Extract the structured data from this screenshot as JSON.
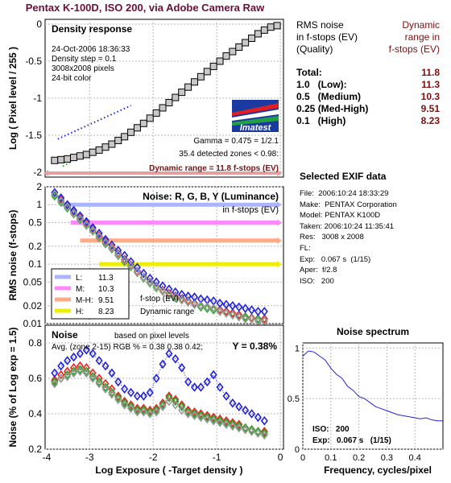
{
  "title": "Pentax K-100D, ISO 200, via Adobe Camera Raw",
  "ev_table": {
    "header_left": [
      "RMS noise",
      "in f-stops (EV)",
      "(Quality)"
    ],
    "header_right": [
      "Dynamic",
      "range in",
      "f-stops (EV)"
    ],
    "rows": [
      {
        "label": "Total:",
        "value": "11.8"
      },
      {
        "label": "1.0   (Low):",
        "value": "11.3"
      },
      {
        "label": "0.5   (Medium)",
        "value": "10.3"
      },
      {
        "label": "0.25 (Med-High)",
        "value": "9.51"
      },
      {
        "label": "0.1   (High)",
        "value": "8.23"
      }
    ]
  },
  "exif": {
    "title": "Selected EXIF data",
    "rows": [
      "File:  2006:10:24 18:33:29",
      "Make:  PENTAX Corporation",
      "Model: PENTAX K100D",
      "Taken: 2006:10:24 11:35:41",
      "Res:   3008 x 2008",
      "FL:",
      "Exp:   0.067 s  (1/15)",
      "Aper:  f/2.8",
      "ISO:   200"
    ]
  },
  "colors": {
    "title": "#6a0f3a",
    "values": "#7a1010",
    "grid": "#b8b8b8",
    "red": "#ee2222",
    "green": "#22aa22",
    "blue": "#2222dd",
    "lum": "#999999"
  },
  "chart_data": [
    {
      "id": "density",
      "type": "line",
      "title": "Density response",
      "ylabel": "Log ( Pixel level / 255 )",
      "xlim": [
        -3.7,
        0.05
      ],
      "ylim": [
        -2.0,
        0.0
      ],
      "xticks": [
        -3,
        -2,
        -1,
        0
      ],
      "yticks": [
        0,
        -0.5,
        -1,
        -1.5,
        -2
      ],
      "ytick_labels": [
        "0",
        "-0.5",
        "-1",
        "-1.5",
        "-2"
      ],
      "info": [
        "24-Oct-2006 18:36:33",
        "Density step = 0.1",
        "3008x2008 pixels",
        "24-bit color"
      ],
      "logo": "Imatest",
      "gamma": "Gamma = 0.475 = 1/2.1",
      "zones": "35.4 detected zones < 0.98:",
      "dynamic_range": "Dynamic range = 11.8 f-stops (EV)",
      "x": [
        -3.55,
        -3.45,
        -3.35,
        -3.25,
        -3.15,
        -3.05,
        -2.95,
        -2.85,
        -2.75,
        -2.65,
        -2.55,
        -2.45,
        -2.35,
        -2.25,
        -2.15,
        -2.05,
        -1.95,
        -1.85,
        -1.75,
        -1.65,
        -1.55,
        -1.45,
        -1.35,
        -1.25,
        -1.15,
        -1.05,
        -0.95,
        -0.85,
        -0.75,
        -0.65,
        -0.55,
        -0.45,
        -0.35,
        -0.25,
        -0.15,
        -0.05
      ],
      "y": [
        -1.84,
        -1.83,
        -1.82,
        -1.8,
        -1.78,
        -1.76,
        -1.73,
        -1.7,
        -1.66,
        -1.62,
        -1.57,
        -1.52,
        -1.46,
        -1.4,
        -1.34,
        -1.27,
        -1.2,
        -1.13,
        -1.06,
        -0.99,
        -0.92,
        -0.85,
        -0.78,
        -0.71,
        -0.64,
        -0.57,
        -0.5,
        -0.43,
        -0.37,
        -0.31,
        -0.25,
        -0.19,
        -0.13,
        -0.08,
        -0.04,
        -0.02
      ],
      "gamma_line": {
        "x": [
          -3.5,
          -2.35
        ],
        "y": [
          -1.55,
          -1.1
        ]
      },
      "dr_range": [
        -3.65,
        -0.05
      ]
    },
    {
      "id": "rms_noise",
      "type": "scatter",
      "title": "Noise: R, G, B, Y (Luminance)",
      "subtitle": "in f-stops (EV)",
      "ylabel": "RMS noise (f-stops)",
      "xlim": [
        -3.7,
        0.05
      ],
      "ylim_log": [
        0.01,
        2
      ],
      "yticks": [
        2,
        1,
        0.5,
        0.2,
        0.1,
        0.05,
        0.02,
        0.01
      ],
      "ytick_labels": [
        "2",
        "1",
        "0.5",
        "0.2",
        "0.1",
        "0.05",
        "0.02",
        "0.01"
      ],
      "legend": [
        {
          "label": "L:",
          "value": "11.3",
          "color": "#aab4ff"
        },
        {
          "label": "M:",
          "value": "10.3",
          "color": "#ff88ff"
        },
        {
          "label": "M-H:",
          "value": "9.51",
          "color": "#ffaa88"
        },
        {
          "label": "H:",
          "value": "8.23",
          "color": "#eeee00"
        }
      ],
      "note1": "f-stop (EV)",
      "note2": "Dynamic range",
      "thresholds": [
        {
          "level": 1.0,
          "x_start": -3.45,
          "color": "#aab4ff"
        },
        {
          "level": 0.5,
          "x_start": -3.3,
          "color": "#ff88ff"
        },
        {
          "level": 0.25,
          "x_start": -3.15,
          "color": "#ffaa88"
        },
        {
          "level": 0.1,
          "x_start": -2.85,
          "color": "#eeee00"
        }
      ],
      "x": [
        -3.55,
        -3.45,
        -3.35,
        -3.25,
        -3.15,
        -3.05,
        -2.95,
        -2.85,
        -2.75,
        -2.65,
        -2.55,
        -2.45,
        -2.35,
        -2.25,
        -2.15,
        -2.05,
        -1.95,
        -1.85,
        -1.75,
        -1.65,
        -1.55,
        -1.45,
        -1.35,
        -1.25,
        -1.15,
        -1.05,
        -0.95,
        -0.85,
        -0.75,
        -0.65,
        -0.55,
        -0.45,
        -0.35,
        -0.25
      ],
      "series": [
        {
          "name": "R",
          "color": "#ee2222",
          "values": [
            1.5,
            1.2,
            0.95,
            0.75,
            0.6,
            0.48,
            0.38,
            0.3,
            0.24,
            0.19,
            0.15,
            0.12,
            0.095,
            0.075,
            0.06,
            0.05,
            0.042,
            0.036,
            0.032,
            0.029,
            0.026,
            0.024,
            0.022,
            0.02,
            0.019,
            0.018,
            0.017,
            0.016,
            0.015,
            0.014,
            0.013,
            0.0125,
            0.012,
            0.012
          ]
        },
        {
          "name": "G",
          "color": "#22aa22",
          "values": [
            1.4,
            1.1,
            0.88,
            0.7,
            0.56,
            0.45,
            0.36,
            0.28,
            0.22,
            0.18,
            0.14,
            0.11,
            0.09,
            0.072,
            0.058,
            0.048,
            0.04,
            0.035,
            0.03,
            0.027,
            0.025,
            0.023,
            0.021,
            0.019,
            0.018,
            0.017,
            0.016,
            0.015,
            0.014,
            0.013,
            0.013,
            0.012,
            0.012,
            0.011
          ]
        },
        {
          "name": "B",
          "color": "#2222dd",
          "values": [
            1.6,
            1.3,
            1.0,
            0.8,
            0.65,
            0.52,
            0.41,
            0.33,
            0.26,
            0.21,
            0.17,
            0.14,
            0.11,
            0.088,
            0.07,
            0.058,
            0.05,
            0.043,
            0.038,
            0.034,
            0.031,
            0.029,
            0.028,
            0.026,
            0.025,
            0.024,
            0.022,
            0.021,
            0.02,
            0.019,
            0.018,
            0.017,
            0.016,
            0.016
          ]
        },
        {
          "name": "Y",
          "color": "#999999",
          "values": [
            1.5,
            1.15,
            0.92,
            0.72,
            0.58,
            0.46,
            0.37,
            0.29,
            0.23,
            0.185,
            0.145,
            0.115,
            0.092,
            0.073,
            0.059,
            0.049,
            0.041,
            0.035,
            0.031,
            0.028,
            0.025,
            0.023,
            0.021,
            0.02,
            0.019,
            0.018,
            0.016,
            0.015,
            0.014,
            0.013,
            0.012,
            0.012,
            0.011,
            0.011
          ]
        }
      ]
    },
    {
      "id": "noise_percent",
      "type": "scatter",
      "title": "Noise",
      "subtitle": "based on pixel levels",
      "avg": "Avg. (zone 2-15) RGB % = 0.38  0.38  0.42;",
      "y_value": "Y = 0.38%",
      "xlabel": "Log Exposure ( -Target density )",
      "ylabel": "Noise (% of Log exp = 1.5)",
      "xlim": [
        -3.7,
        0.05
      ],
      "ylim": [
        0.2,
        0.9
      ],
      "xticks": [
        -4,
        -3,
        -2,
        -1,
        0
      ],
      "yticks": [
        0.2,
        0.4,
        0.6,
        0.8
      ],
      "ytick_labels": [
        "0.2",
        "0.4",
        "0.6",
        "0.8"
      ],
      "x": [
        -3.55,
        -3.45,
        -3.35,
        -3.25,
        -3.15,
        -3.05,
        -2.95,
        -2.85,
        -2.75,
        -2.65,
        -2.55,
        -2.45,
        -2.35,
        -2.25,
        -2.15,
        -2.05,
        -1.95,
        -1.85,
        -1.75,
        -1.65,
        -1.55,
        -1.45,
        -1.35,
        -1.25,
        -1.15,
        -1.05,
        -0.95,
        -0.85,
        -0.75,
        -0.65,
        -0.55,
        -0.45,
        -0.35,
        -0.25
      ],
      "series": [
        {
          "name": "R",
          "color": "#ee2222",
          "values": [
            0.59,
            0.62,
            0.64,
            0.66,
            0.67,
            0.66,
            0.63,
            0.6,
            0.57,
            0.54,
            0.5,
            0.47,
            0.45,
            0.43,
            0.43,
            0.42,
            0.43,
            0.46,
            0.5,
            0.48,
            0.45,
            0.42,
            0.41,
            0.4,
            0.39,
            0.38,
            0.37,
            0.36,
            0.35,
            0.34,
            0.32,
            0.31,
            0.3,
            0.3
          ]
        },
        {
          "name": "G",
          "color": "#22aa22",
          "values": [
            0.58,
            0.6,
            0.62,
            0.64,
            0.65,
            0.64,
            0.61,
            0.58,
            0.55,
            0.52,
            0.49,
            0.46,
            0.44,
            0.42,
            0.42,
            0.41,
            0.42,
            0.45,
            0.49,
            0.47,
            0.44,
            0.41,
            0.4,
            0.39,
            0.38,
            0.37,
            0.36,
            0.35,
            0.34,
            0.33,
            0.32,
            0.31,
            0.3,
            0.29
          ]
        },
        {
          "name": "B",
          "color": "#2222dd",
          "values": [
            0.63,
            0.67,
            0.7,
            0.72,
            0.74,
            0.76,
            0.74,
            0.7,
            0.67,
            0.63,
            0.58,
            0.54,
            0.52,
            0.5,
            0.5,
            0.52,
            0.6,
            0.68,
            0.74,
            0.71,
            0.66,
            0.58,
            0.55,
            0.55,
            0.58,
            0.62,
            0.55,
            0.5,
            0.46,
            0.44,
            0.42,
            0.4,
            0.38,
            0.36
          ]
        },
        {
          "name": "Y",
          "color": "#999999",
          "values": [
            0.57,
            0.6,
            0.61,
            0.63,
            0.64,
            0.63,
            0.6,
            0.57,
            0.54,
            0.51,
            0.48,
            0.45,
            0.43,
            0.41,
            0.41,
            0.4,
            0.41,
            0.44,
            0.47,
            0.45,
            0.42,
            0.4,
            0.39,
            0.38,
            0.37,
            0.36,
            0.35,
            0.34,
            0.33,
            0.32,
            0.31,
            0.3,
            0.29,
            0.28
          ]
        }
      ]
    },
    {
      "id": "noise_spectrum",
      "type": "line",
      "title": "Noise spectrum",
      "xlabel": "Frequency, cycles/pixel",
      "xlim": [
        0,
        0.5
      ],
      "ylim": [
        0,
        1.05
      ],
      "xticks": [
        0,
        0.1,
        0.2,
        0.3,
        0.4
      ],
      "xtick_labels": [
        "0",
        "0.1",
        "0.2",
        "0.3",
        "0.4"
      ],
      "yticks": [
        0,
        0.5,
        1
      ],
      "ytick_labels": [
        "0",
        "0.5",
        "1"
      ],
      "iso": "ISO:   200",
      "exp": "Exp:   0.067 s   (1/15)",
      "x": [
        0.0,
        0.02,
        0.04,
        0.06,
        0.08,
        0.1,
        0.12,
        0.14,
        0.16,
        0.18,
        0.2,
        0.22,
        0.24,
        0.26,
        0.28,
        0.3,
        0.32,
        0.34,
        0.36,
        0.38,
        0.4,
        0.42,
        0.44,
        0.46,
        0.48,
        0.5
      ],
      "y": [
        0.92,
        0.97,
        0.96,
        0.92,
        0.88,
        0.8,
        0.74,
        0.7,
        0.62,
        0.58,
        0.52,
        0.5,
        0.46,
        0.42,
        0.4,
        0.38,
        0.36,
        0.34,
        0.33,
        0.32,
        0.31,
        0.3,
        0.31,
        0.29,
        0.28,
        0.28
      ]
    }
  ]
}
